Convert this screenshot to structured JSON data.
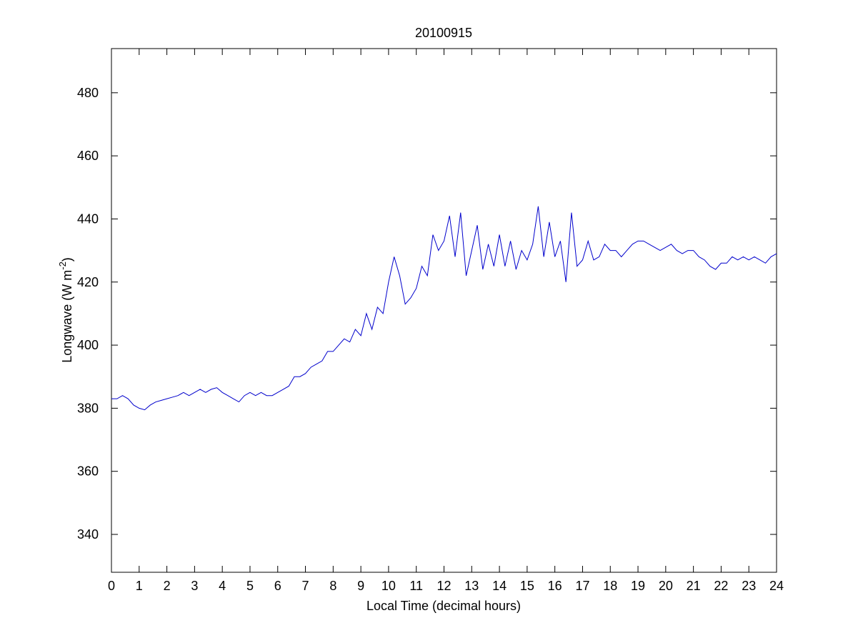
{
  "chart_data": {
    "type": "line",
    "title": "20100915",
    "xlabel": "Local Time (decimal hours)",
    "ylabel": [
      "Longwave (W m",
      "-2",
      ")"
    ],
    "color": "#0000cc",
    "x": [
      0,
      0.2,
      0.4,
      0.6,
      0.8,
      1,
      1.2,
      1.4,
      1.6,
      1.8,
      2,
      2.2,
      2.4,
      2.6,
      2.8,
      3,
      3.2,
      3.4,
      3.6,
      3.8,
      4,
      4.2,
      4.4,
      4.6,
      4.8,
      5,
      5.2,
      5.4,
      5.6,
      5.8,
      6,
      6.2,
      6.4,
      6.6,
      6.8,
      7,
      7.2,
      7.4,
      7.6,
      7.8,
      8,
      8.2,
      8.4,
      8.6,
      8.8,
      9,
      9.2,
      9.4,
      9.6,
      9.8,
      10,
      10.2,
      10.4,
      10.6,
      10.8,
      11,
      11.2,
      11.4,
      11.6,
      11.8,
      12,
      12.2,
      12.4,
      12.6,
      12.8,
      13,
      13.2,
      13.4,
      13.6,
      13.8,
      14,
      14.2,
      14.4,
      14.6,
      14.8,
      15,
      15.2,
      15.4,
      15.6,
      15.8,
      16,
      16.2,
      16.4,
      16.6,
      16.8,
      17,
      17.2,
      17.4,
      17.6,
      17.8,
      18,
      18.2,
      18.4,
      18.6,
      18.8,
      19,
      19.2,
      19.4,
      19.6,
      19.8,
      20,
      20.2,
      20.4,
      20.6,
      20.8,
      21,
      21.2,
      21.4,
      21.6,
      21.8,
      22,
      22.2,
      22.4,
      22.6,
      22.8,
      23,
      23.2,
      23.4,
      23.6,
      23.8,
      24
    ],
    "values": [
      383,
      383,
      384,
      383,
      381,
      380,
      379.5,
      381,
      382,
      382.5,
      383,
      383.5,
      384,
      385,
      384,
      385,
      386,
      385,
      386,
      386.5,
      385,
      384,
      383,
      382,
      384,
      385,
      384,
      385,
      384,
      384,
      385,
      386,
      387,
      390,
      390,
      391,
      393,
      394,
      395,
      398,
      398,
      400,
      402,
      401,
      405,
      403,
      410,
      405,
      412,
      410,
      420,
      428,
      422,
      413,
      415,
      418,
      425,
      422,
      435,
      430,
      433,
      441,
      428,
      442,
      422,
      430,
      438,
      424,
      432,
      425,
      435,
      425,
      433,
      424,
      430,
      427,
      432,
      444,
      428,
      439,
      428,
      433,
      420,
      442,
      425,
      427,
      433,
      427,
      428,
      432,
      430,
      430,
      428,
      430,
      432,
      433,
      433,
      432,
      431,
      430,
      431,
      432,
      430,
      429,
      430,
      430,
      428,
      427,
      425,
      424,
      426,
      426,
      428,
      427,
      428,
      427,
      428,
      427,
      426,
      428,
      429
    ],
    "xlim": [
      0,
      24
    ],
    "ylim": [
      328,
      494
    ],
    "xticks": [
      0,
      1,
      2,
      3,
      4,
      5,
      6,
      7,
      8,
      9,
      10,
      11,
      12,
      13,
      14,
      15,
      16,
      17,
      18,
      19,
      20,
      21,
      22,
      23,
      24
    ],
    "yticks": [
      340,
      360,
      380,
      400,
      420,
      440,
      460,
      480
    ]
  }
}
